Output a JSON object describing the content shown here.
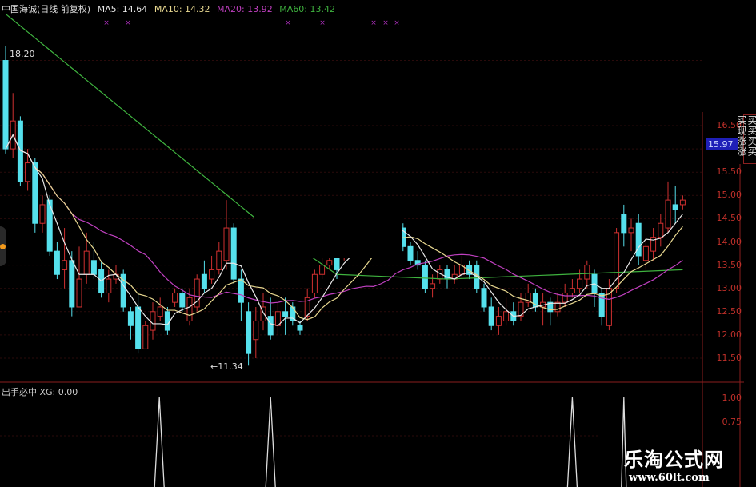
{
  "header": {
    "title": "中国海诚(日线 前复权)",
    "ma5": "MA5: 14.64",
    "ma10": "MA10: 14.32",
    "ma20": "MA20: 13.92",
    "ma60": "MA60: 13.42"
  },
  "colors": {
    "ma5": "#e8e8e8",
    "ma10": "#e8d890",
    "ma20": "#c040c0",
    "ma60": "#3fb33f",
    "up": "#d03030",
    "down": "#55e0ec",
    "axis": "#8a1e1e",
    "marker": "#b030c0"
  },
  "price_axis": {
    "ticks": [
      "16.50",
      "15.50",
      "15.00",
      "14.50",
      "14.00",
      "13.50",
      "13.00",
      "12.50",
      "12.00",
      "11.50"
    ],
    "current_price": "15.97"
  },
  "annotations": {
    "high_label": "18.20",
    "low_label": "←11.34"
  },
  "signal_strip": "买买买买买现涨涨",
  "indicator": {
    "title": "出手必中 XG: 0.00",
    "ticks": [
      "1.00",
      "0.75"
    ]
  },
  "watermark": {
    "title": "乐淘公式网",
    "url": "www.60lt.com"
  },
  "chart_data": {
    "type": "candlestick",
    "ylim": [
      11.2,
      18.6
    ],
    "candles_ohlc": [
      [
        17.9,
        16.0,
        18.2,
        15.9
      ],
      [
        16.0,
        16.6,
        17.2,
        15.8
      ],
      [
        16.6,
        15.3,
        16.7,
        15.2
      ],
      [
        15.3,
        15.7,
        16.0,
        15.1
      ],
      [
        15.7,
        14.4,
        15.8,
        14.2
      ],
      [
        14.4,
        14.8,
        15.0,
        14.2
      ],
      [
        14.9,
        13.8,
        15.0,
        13.7
      ],
      [
        13.8,
        13.3,
        14.0,
        13.2
      ],
      [
        13.4,
        13.6,
        14.3,
        13.0
      ],
      [
        13.6,
        12.6,
        13.8,
        12.4
      ],
      [
        12.6,
        13.2,
        13.9,
        12.6
      ],
      [
        13.3,
        13.8,
        14.2,
        13.1
      ],
      [
        13.6,
        13.3,
        14.0,
        13.2
      ],
      [
        13.4,
        12.9,
        13.6,
        12.8
      ],
      [
        12.9,
        13.2,
        13.4,
        12.7
      ],
      [
        13.2,
        13.3,
        13.5,
        13.1
      ],
      [
        13.3,
        12.6,
        13.4,
        12.5
      ],
      [
        12.5,
        12.2,
        12.6,
        11.9
      ],
      [
        12.6,
        11.7,
        12.9,
        11.6
      ],
      [
        11.7,
        12.2,
        12.3,
        11.7
      ],
      [
        12.1,
        12.5,
        12.7,
        11.9
      ],
      [
        12.4,
        12.6,
        12.8,
        12.3
      ],
      [
        12.5,
        12.1,
        12.6,
        12.0
      ],
      [
        12.7,
        12.9,
        13.0,
        12.6
      ],
      [
        12.9,
        12.6,
        13.0,
        12.5
      ],
      [
        12.3,
        12.8,
        13.0,
        12.2
      ],
      [
        12.6,
        13.2,
        13.3,
        12.5
      ],
      [
        13.3,
        13.0,
        13.6,
        12.9
      ],
      [
        13.2,
        13.4,
        13.7,
        13.1
      ],
      [
        13.4,
        13.8,
        14.0,
        13.3
      ],
      [
        13.6,
        14.3,
        14.9,
        13.4
      ],
      [
        14.3,
        13.2,
        14.4,
        13.1
      ],
      [
        13.2,
        12.7,
        13.4,
        12.3
      ],
      [
        12.5,
        11.6,
        12.7,
        11.34
      ],
      [
        11.9,
        12.3,
        12.6,
        11.5
      ],
      [
        12.3,
        12.6,
        12.9,
        12.1
      ],
      [
        12.4,
        12.0,
        12.8,
        11.9
      ],
      [
        12.2,
        12.5,
        12.7,
        12.0
      ],
      [
        12.5,
        12.4,
        12.8,
        12.0
      ],
      [
        12.6,
        12.3,
        12.7,
        12.2
      ],
      [
        12.2,
        12.1,
        12.3,
        12.0
      ],
      [
        12.4,
        12.8,
        13.0,
        12.3
      ],
      [
        12.9,
        13.3,
        13.4,
        12.8
      ],
      [
        13.3,
        13.5,
        13.7,
        13.2
      ],
      [
        13.5,
        13.6,
        13.8,
        13.4
      ],
      [
        13.7,
        13.4,
        13.8,
        13.2
      ],
      [
        13.7,
        13.9,
        14.0,
        13.6
      ],
      [
        13.9,
        14.1,
        14.3,
        13.8
      ],
      [
        14.1,
        14.0,
        14.3,
        13.9
      ],
      [
        14.0,
        14.3,
        14.6,
        13.9
      ],
      [
        14.3,
        14.2,
        14.5,
        14.1
      ],
      [
        14.2,
        14.4,
        14.6,
        14.1
      ],
      [
        14.4,
        14.3,
        14.6,
        14.2
      ],
      [
        14.5,
        14.4,
        14.6,
        14.3
      ],
      [
        14.3,
        13.9,
        14.4,
        13.8
      ],
      [
        13.9,
        13.6,
        14.0,
        13.5
      ],
      [
        13.6,
        13.5,
        13.8,
        13.4
      ],
      [
        13.5,
        13.0,
        13.6,
        12.9
      ],
      [
        13.0,
        13.1,
        13.3,
        12.8
      ],
      [
        13.2,
        13.4,
        13.5,
        13.1
      ],
      [
        13.4,
        13.2,
        13.5,
        13.0
      ],
      [
        13.2,
        13.3,
        13.5,
        13.1
      ],
      [
        13.3,
        13.5,
        13.7,
        13.2
      ],
      [
        13.5,
        13.3,
        13.6,
        13.2
      ],
      [
        13.5,
        13.0,
        13.6,
        12.9
      ],
      [
        13.0,
        12.6,
        13.1,
        12.5
      ],
      [
        12.6,
        12.2,
        12.8,
        12.1
      ],
      [
        12.2,
        12.4,
        12.6,
        12.0
      ],
      [
        12.3,
        12.5,
        12.8,
        12.2
      ],
      [
        12.5,
        12.3,
        12.7,
        12.2
      ],
      [
        12.4,
        12.7,
        12.9,
        12.3
      ],
      [
        12.7,
        12.9,
        13.1,
        12.6
      ],
      [
        12.9,
        12.6,
        13.0,
        12.5
      ],
      [
        12.6,
        12.7,
        12.9,
        12.2
      ],
      [
        12.7,
        12.5,
        12.8,
        12.2
      ],
      [
        12.5,
        12.7,
        12.9,
        12.4
      ],
      [
        12.7,
        12.9,
        13.1,
        12.6
      ],
      [
        12.9,
        13.0,
        13.2,
        12.8
      ],
      [
        13.0,
        13.2,
        13.4,
        12.9
      ],
      [
        13.2,
        13.5,
        13.6,
        13.0
      ],
      [
        13.3,
        12.9,
        13.4,
        12.6
      ],
      [
        12.9,
        12.4,
        13.0,
        12.2
      ],
      [
        12.2,
        13.0,
        13.2,
        12.1
      ],
      [
        13.0,
        14.2,
        14.3,
        12.9
      ],
      [
        14.6,
        14.2,
        14.8,
        13.9
      ],
      [
        14.2,
        14.3,
        14.5,
        13.8
      ],
      [
        14.4,
        13.7,
        14.6,
        13.5
      ],
      [
        13.6,
        13.9,
        14.1,
        13.4
      ],
      [
        13.8,
        14.1,
        14.3,
        13.6
      ],
      [
        14.1,
        14.4,
        14.6,
        13.9
      ],
      [
        14.3,
        14.9,
        15.3,
        14.2
      ],
      [
        14.8,
        14.7,
        15.2,
        14.4
      ],
      [
        14.8,
        14.9,
        15.0,
        14.7
      ]
    ],
    "ma60_anchors": [
      [
        0,
        18.9
      ],
      [
        34,
        14.5
      ],
      [
        45,
        13.3
      ],
      [
        60,
        13.2
      ],
      [
        92,
        13.4
      ]
    ],
    "signal_candle_indices": [
      21,
      36,
      77,
      84
    ],
    "indicator_values_at_signals": [
      1,
      1,
      1,
      1
    ]
  }
}
